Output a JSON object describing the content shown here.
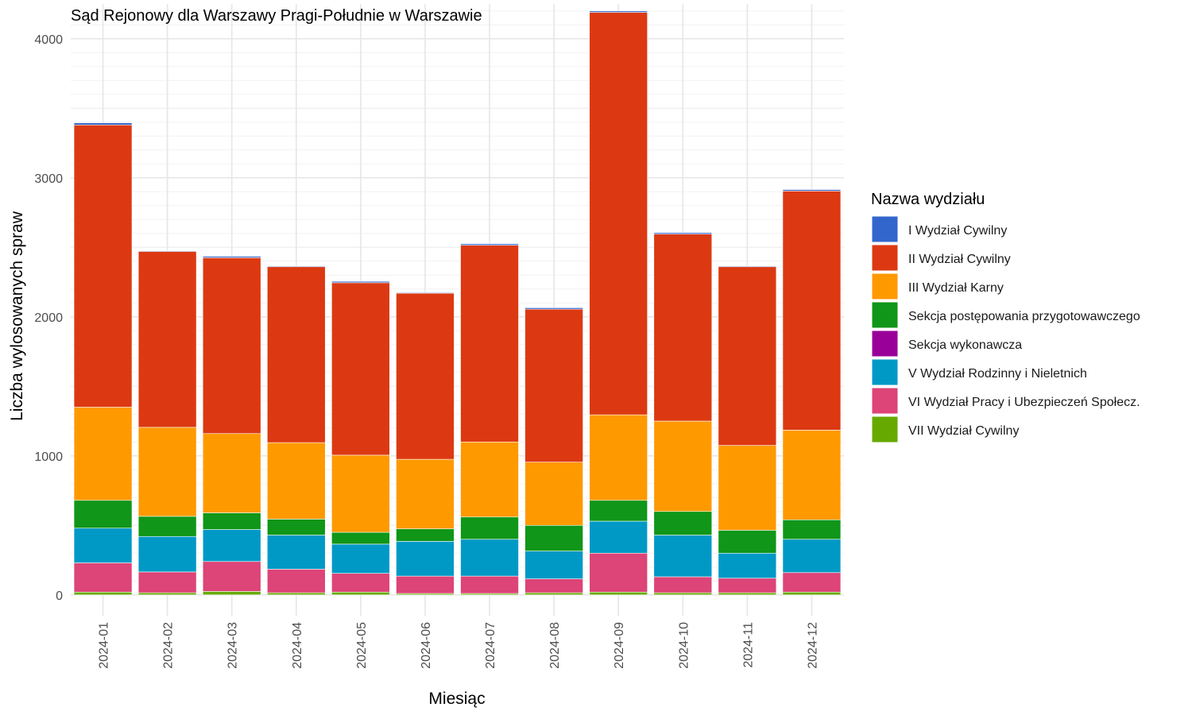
{
  "chart_data": {
    "type": "bar",
    "stacked": true,
    "title": "Sąd Rejonowy dla Warszawy Pragi-Południe w Warszawie",
    "xlabel": "Miesiąc",
    "ylabel": "Liczba wylosowanych spraw",
    "ylim": [
      -150,
      4250
    ],
    "yticks": [
      0,
      1000,
      2000,
      3000,
      4000
    ],
    "grid": true,
    "legend_position": "right",
    "legend_title": "Nazwa wydziału",
    "categories": [
      "2024-01",
      "2024-02",
      "2024-03",
      "2024-04",
      "2024-05",
      "2024-06",
      "2024-07",
      "2024-08",
      "2024-09",
      "2024-10",
      "2024-11",
      "2024-12"
    ],
    "series": [
      {
        "name": "VII Wydział Cywilny",
        "color": "#66AA00",
        "values": [
          20,
          15,
          25,
          15,
          20,
          10,
          10,
          15,
          20,
          15,
          15,
          20
        ]
      },
      {
        "name": "VI Wydział Pracy i Ubezpieczeń Społecz.",
        "color": "#DD4477",
        "values": [
          210,
          150,
          215,
          170,
          135,
          125,
          125,
          100,
          280,
          115,
          105,
          140
        ]
      },
      {
        "name": "V Wydział Rodzinny i Nieletnich",
        "color": "#0099C6",
        "values": [
          250,
          255,
          230,
          245,
          210,
          250,
          265,
          200,
          230,
          300,
          180,
          240
        ]
      },
      {
        "name": "Sekcja wykonawcza",
        "color": "#990099",
        "values": [
          0,
          0,
          0,
          0,
          0,
          0,
          0,
          0,
          0,
          0,
          0,
          0
        ]
      },
      {
        "name": "Sekcja postępowania przygotowawczego",
        "color": "#109618",
        "values": [
          200,
          145,
          120,
          115,
          85,
          90,
          160,
          185,
          150,
          170,
          165,
          140
        ]
      },
      {
        "name": "III Wydział Karny",
        "color": "#FF9900",
        "values": [
          670,
          640,
          570,
          550,
          555,
          500,
          540,
          455,
          615,
          650,
          610,
          645
        ]
      },
      {
        "name": "II Wydział Cywilny",
        "color": "#DC3912",
        "values": [
          2030,
          1265,
          1265,
          1265,
          1240,
          1195,
          1415,
          1100,
          2895,
          1345,
          1285,
          1720
        ]
      },
      {
        "name": "I Wydział Cywilny",
        "color": "#3366CC",
        "values": [
          15,
          5,
          10,
          5,
          10,
          5,
          10,
          10,
          10,
          10,
          5,
          10
        ]
      }
    ]
  }
}
